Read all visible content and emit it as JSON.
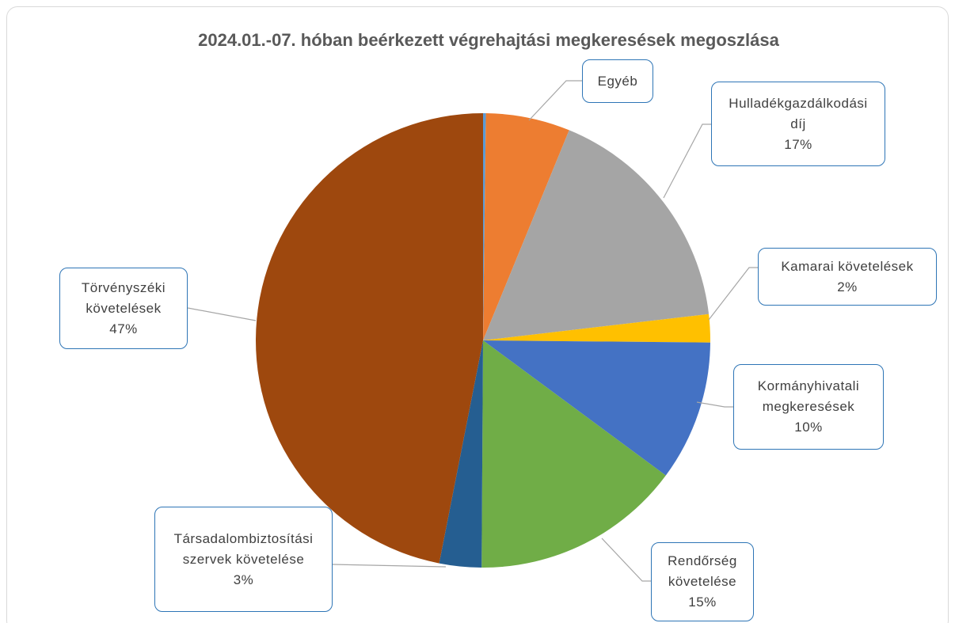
{
  "chart_data": {
    "type": "pie",
    "title": "2024.01.-07.  hóban beérkezett végrehajtási megkeresések megoszlása",
    "categories": [
      null,
      "Egyéb",
      "Hulladékgazdálkodási díj",
      "Kamarai követelések",
      "Kormányhivatali megkeresések",
      "Rendőrség követelése",
      "Társadalombiztosítási szervek követelése",
      "Törvényszéki követelések"
    ],
    "values": [
      0.2,
      6,
      17,
      2,
      10,
      15,
      3,
      47
    ],
    "value_labels": [
      null,
      null,
      "17%",
      "2%",
      "10%",
      "15%",
      "3%",
      "47%"
    ],
    "colors": [
      "#5b9bd5",
      "#ed7d31",
      "#a5a5a5",
      "#ffc000",
      "#4472c4",
      "#70ad47",
      "#255e91",
      "#9e480e"
    ]
  }
}
